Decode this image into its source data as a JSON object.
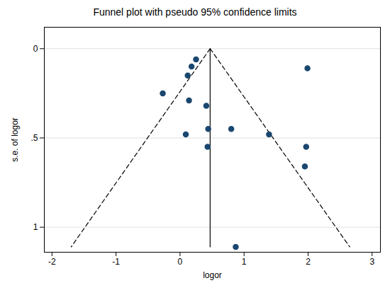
{
  "chart_data": {
    "type": "scatter",
    "title": "Funnel plot with pseudo 95% confidence limits",
    "x_label": "logor",
    "y_label": "s.e. of logor",
    "x": [
      0.25,
      0.18,
      0.12,
      1.99,
      -0.27,
      0.14,
      0.41,
      0.44,
      0.8,
      0.09,
      1.39,
      0.43,
      1.97,
      1.95,
      0.87
    ],
    "values": [
      0.06,
      0.1,
      0.15,
      0.11,
      0.25,
      0.29,
      0.32,
      0.45,
      0.45,
      0.48,
      0.48,
      0.55,
      0.55,
      0.66,
      1.11
    ],
    "color": "#1a476f",
    "marker": "circle",
    "lines": [
      {
        "type": "line",
        "x": [
          0.47,
          0.47
        ],
        "values": [
          0,
          1.11
        ],
        "color": "#000000",
        "line_style": "solid"
      },
      {
        "type": "line",
        "x": [
          0.47,
          -1.7
        ],
        "values": [
          0,
          1.11
        ],
        "color": "#000000",
        "line_style": "dashed"
      },
      {
        "type": "line",
        "x": [
          0.47,
          2.65
        ],
        "values": [
          0,
          1.11
        ],
        "color": "#000000",
        "line_style": "dashed"
      }
    ],
    "xlim": [
      -2.12,
      3.13
    ],
    "xticks": [
      -2,
      -1,
      0,
      1,
      2,
      3
    ],
    "ylim": [
      -0.12,
      1.14
    ],
    "yticks": [
      0,
      {
        "value": 0.5,
        "label": ".5"
      },
      1
    ],
    "grid": true
  }
}
